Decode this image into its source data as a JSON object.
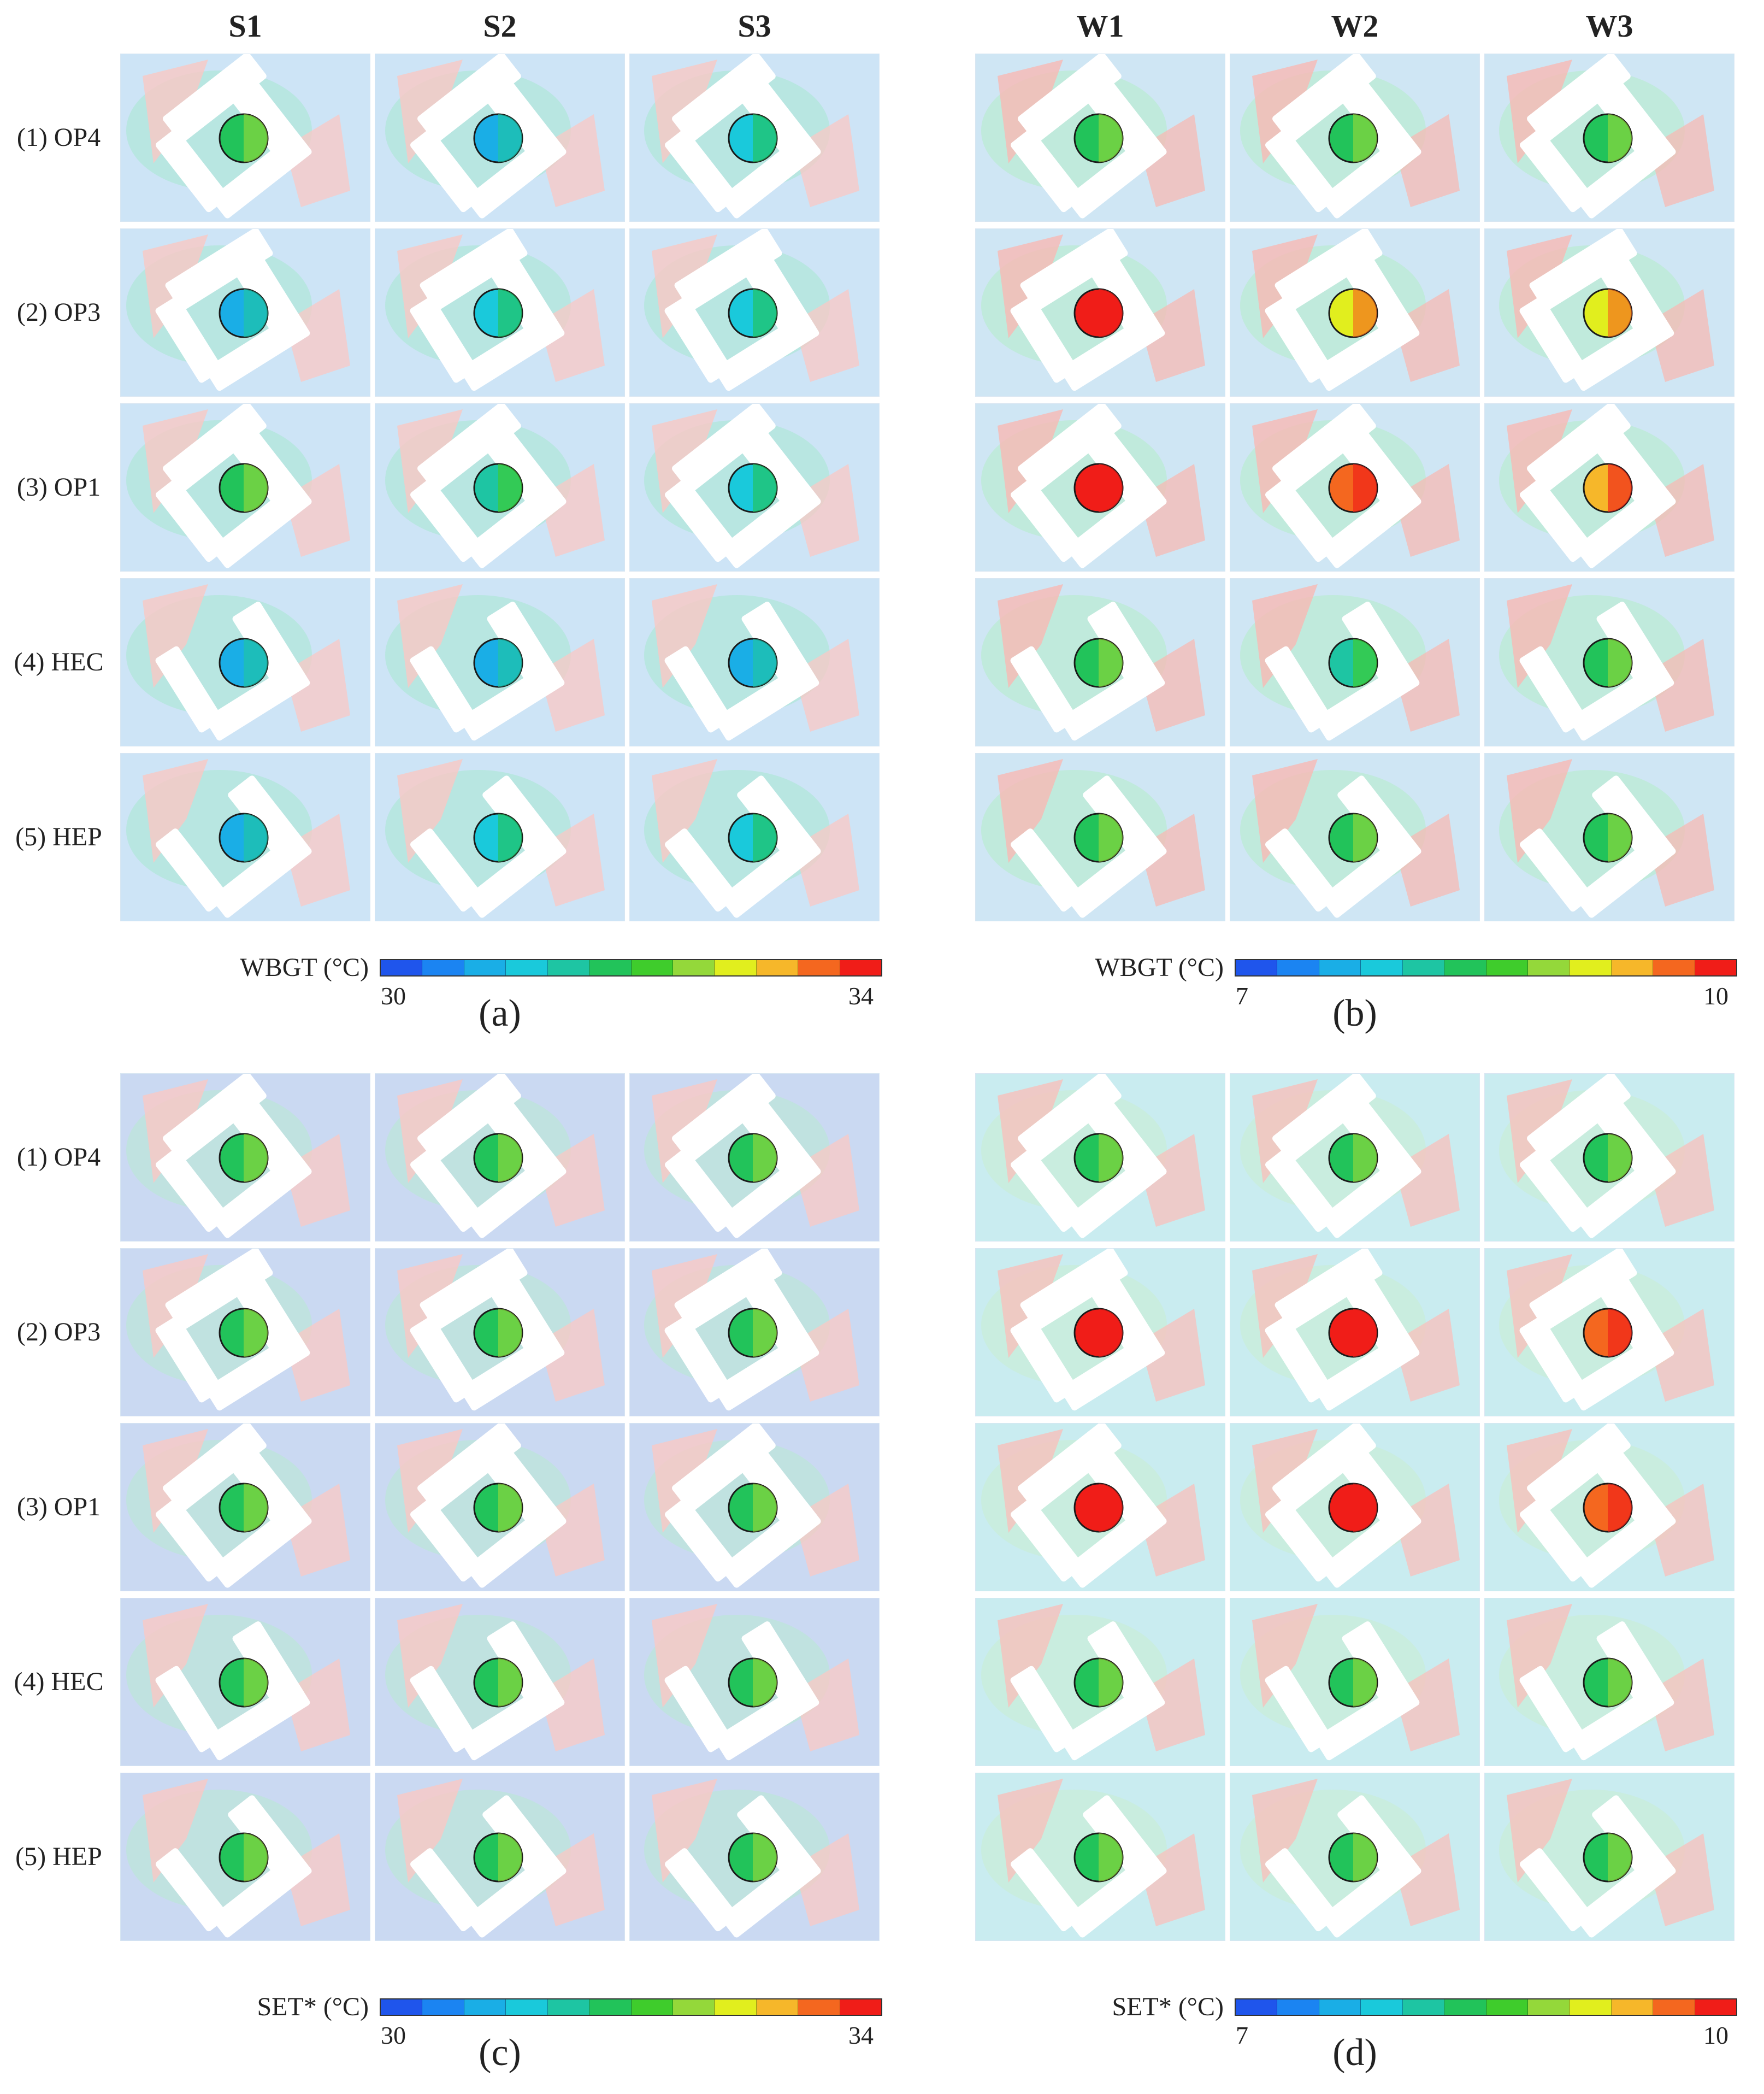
{
  "summer_columns": [
    "S1",
    "S2",
    "S3"
  ],
  "winter_columns": [
    "W1",
    "W2",
    "W3"
  ],
  "rows": [
    "(1) OP4",
    "(2) OP3",
    "(3) OP1",
    "(4) HEC",
    "(5) HEP"
  ],
  "colormap": [
    "#1f55ec",
    "#1b84f2",
    "#1aaee6",
    "#1ac9db",
    "#1ec5a3",
    "#22c35a",
    "#3fcc2c",
    "#94d83a",
    "#e1ee1e",
    "#f6b72a",
    "#f4671f",
    "#f01d18"
  ],
  "figures": [
    {
      "id": "a",
      "label": "(a)",
      "season": "summer",
      "colorbar": {
        "label": "WBGT (°C)",
        "min": "30",
        "max": "34"
      },
      "background": "#cde4f6",
      "hot": "#f9c8c4",
      "mid": "#a8e8cf",
      "circles": [
        [
          "#22c35a",
          "#1aaee6",
          "#1ac9db"
        ],
        [
          "#1aaee6",
          "#1ac9db",
          "#1ac9db"
        ],
        [
          "#22c35a",
          "#1ec5a3",
          "#1ac9db"
        ],
        [
          "#1aaee6",
          "#1aaee6",
          "#1aaee6"
        ],
        [
          "#1aaee6",
          "#1ac9db",
          "#1ac9db"
        ]
      ]
    },
    {
      "id": "b",
      "label": "(b)",
      "season": "winter",
      "colorbar": {
        "label": "WBGT (°C)",
        "min": "7",
        "max": "10"
      },
      "background": "#cfe6f4",
      "hot": "#f7b9b4",
      "mid": "#b4ecc8",
      "circles": [
        [
          "#22c35a",
          "#22c35a",
          "#22c35a"
        ],
        [
          "#f01d18",
          "#e1ee1e",
          "#e1ee1e"
        ],
        [
          "#f01d18",
          "#f4671f",
          "#f6b72a"
        ],
        [
          "#22c35a",
          "#1ec5a3",
          "#22c35a"
        ],
        [
          "#22c35a",
          "#22c35a",
          "#22c35a"
        ]
      ]
    },
    {
      "id": "c",
      "label": "(c)",
      "season": "summer",
      "colorbar": {
        "label": "SET* (°C)",
        "min": "30",
        "max": "34"
      },
      "background": "#cad9f2",
      "hot": "#f9c8c4",
      "mid": "#b8ead2",
      "circles": [
        [
          "#22c35a",
          "#22c35a",
          "#22c35a"
        ],
        [
          "#22c35a",
          "#22c35a",
          "#22c35a"
        ],
        [
          "#22c35a",
          "#22c35a",
          "#22c35a"
        ],
        [
          "#22c35a",
          "#22c35a",
          "#22c35a"
        ],
        [
          "#22c35a",
          "#22c35a",
          "#22c35a"
        ]
      ]
    },
    {
      "id": "d",
      "label": "(d)",
      "season": "winter",
      "colorbar": {
        "label": "SET* (°C)",
        "min": "7",
        "max": "10"
      },
      "background": "#c9ecf0",
      "hot": "#f8c0bc",
      "mid": "#c8efd2",
      "circles": [
        [
          "#22c35a",
          "#22c35a",
          "#22c35a"
        ],
        [
          "#f01d18",
          "#f01d18",
          "#f4671f"
        ],
        [
          "#f01d18",
          "#f01d18",
          "#f4671f"
        ],
        [
          "#22c35a",
          "#22c35a",
          "#22c35a"
        ],
        [
          "#22c35a",
          "#22c35a",
          "#22c35a"
        ]
      ]
    }
  ]
}
